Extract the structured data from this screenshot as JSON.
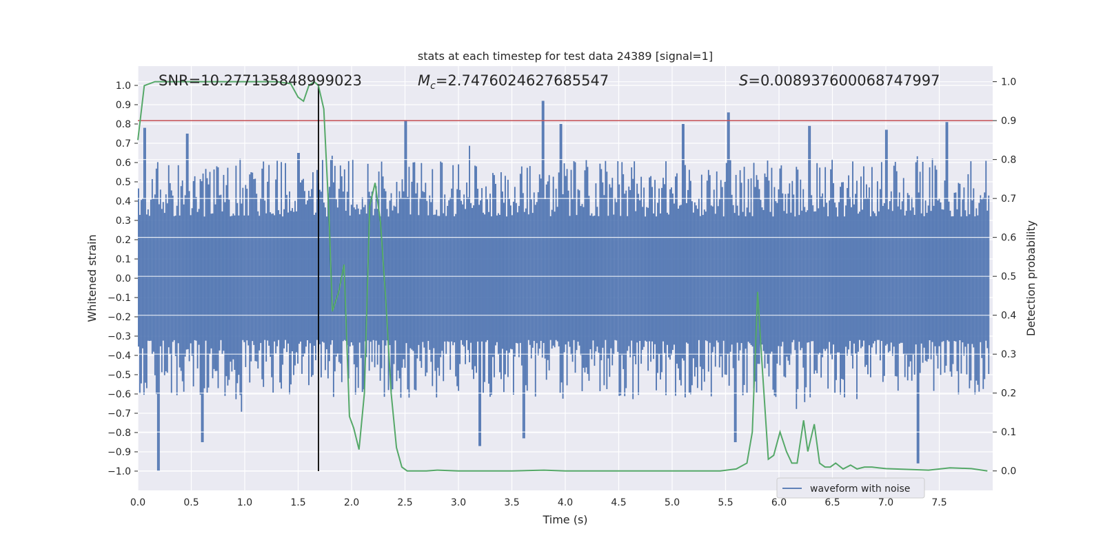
{
  "chart_data": {
    "type": "line",
    "title": "stats at each timestep for test data 24389 [signal=1]",
    "xlabel": "Time (s)",
    "ylabel": "Whitened strain",
    "y2label": "Detection probability",
    "xlim": [
      0,
      8.0
    ],
    "ylim": [
      -1.1,
      1.1
    ],
    "y2lim": [
      -0.05,
      1.04
    ],
    "xticks": [
      "0.0",
      "0.5",
      "1.0",
      "1.5",
      "2.0",
      "2.5",
      "3.0",
      "3.5",
      "4.0",
      "4.5",
      "5.0",
      "5.5",
      "6.0",
      "6.5",
      "7.0",
      "7.5"
    ],
    "yticks": [
      "1.0",
      "0.9",
      "0.8",
      "0.7",
      "0.6",
      "0.5",
      "0.4",
      "0.3",
      "0.2",
      "0.1",
      "0.0",
      "-0.1",
      "-0.2",
      "-0.3",
      "-0.4",
      "-0.5",
      "-0.6",
      "-0.7",
      "-0.8",
      "-0.9",
      "-1.0"
    ],
    "y2ticks": [
      "1.0",
      "0.9",
      "0.8",
      "0.7",
      "0.6",
      "0.5",
      "0.4",
      "0.3",
      "0.2",
      "0.1",
      "0.0"
    ],
    "grid": true,
    "legend": {
      "entries": [
        "waveform with noise"
      ],
      "placement": "lower-right"
    },
    "annotations": {
      "snr": "SNR=10.277135848999023",
      "mc_symbol": "M",
      "mc_sub": "c",
      "mc_value": "=2.7476024627685547",
      "s_symbol": "S",
      "s_value": "=0.008937600068747997"
    },
    "threshold_probability": 0.9,
    "event_time": 1.69,
    "waveform": {
      "name": "waveform with noise",
      "color": "#4c72b0",
      "core_amplitude": 0.32,
      "outer_amplitude": 0.62,
      "peaks": [
        {
          "t": 0.19,
          "min": -1.0
        },
        {
          "t": 0.06,
          "max": 0.78
        },
        {
          "t": 0.45,
          "max": 0.75
        },
        {
          "t": 0.6,
          "min": -0.85
        },
        {
          "t": 1.5,
          "max": 0.65
        },
        {
          "t": 2.5,
          "max": 0.82
        },
        {
          "t": 3.2,
          "min": -0.87
        },
        {
          "t": 3.6,
          "min": -0.83
        },
        {
          "t": 3.78,
          "max": 0.92
        },
        {
          "t": 3.95,
          "max": 0.8
        },
        {
          "t": 5.1,
          "max": 0.8
        },
        {
          "t": 5.52,
          "max": 0.86
        },
        {
          "t": 5.58,
          "min": -0.85
        },
        {
          "t": 6.28,
          "max": 0.79
        },
        {
          "t": 7.0,
          "max": 0.77
        },
        {
          "t": 7.3,
          "min": -0.96
        },
        {
          "t": 7.57,
          "max": 0.81
        }
      ]
    },
    "detection_probability": {
      "color": "#55a868",
      "x": [
        0.0,
        0.06,
        0.11,
        0.16,
        0.22,
        0.3,
        0.4,
        0.5,
        0.7,
        0.9,
        1.1,
        1.3,
        1.43,
        1.5,
        1.55,
        1.6,
        1.65,
        1.69,
        1.74,
        1.79,
        1.82,
        1.88,
        1.93,
        1.98,
        2.02,
        2.07,
        2.12,
        2.17,
        2.22,
        2.27,
        2.32,
        2.37,
        2.42,
        2.47,
        2.52,
        2.6,
        2.7,
        2.8,
        3.0,
        3.2,
        3.5,
        3.8,
        4.0,
        4.3,
        4.6,
        4.9,
        5.2,
        5.45,
        5.6,
        5.7,
        5.75,
        5.8,
        5.84,
        5.9,
        5.95,
        6.01,
        6.07,
        6.12,
        6.17,
        6.23,
        6.27,
        6.33,
        6.38,
        6.43,
        6.48,
        6.53,
        6.6,
        6.67,
        6.73,
        6.8,
        6.87,
        6.93,
        7.0,
        7.2,
        7.4,
        7.6,
        7.8,
        7.95
      ],
      "y": [
        0.85,
        0.99,
        0.995,
        1.0,
        1.0,
        1.0,
        1.0,
        1.0,
        1.0,
        1.0,
        1.0,
        1.0,
        0.995,
        0.96,
        0.95,
        0.99,
        1.0,
        0.99,
        0.93,
        0.65,
        0.41,
        0.46,
        0.53,
        0.14,
        0.11,
        0.055,
        0.2,
        0.68,
        0.74,
        0.64,
        0.44,
        0.2,
        0.06,
        0.01,
        0.0,
        0.0,
        0.0,
        0.002,
        0.0,
        0.0,
        0.0,
        0.002,
        0.0,
        0.0,
        0.0,
        0.0,
        0.0,
        0.0,
        0.005,
        0.02,
        0.1,
        0.46,
        0.28,
        0.03,
        0.04,
        0.1,
        0.05,
        0.02,
        0.02,
        0.13,
        0.05,
        0.12,
        0.02,
        0.01,
        0.01,
        0.02,
        0.005,
        0.015,
        0.005,
        0.01,
        0.01,
        0.008,
        0.006,
        0.004,
        0.002,
        0.008,
        0.006,
        0.0
      ]
    }
  }
}
